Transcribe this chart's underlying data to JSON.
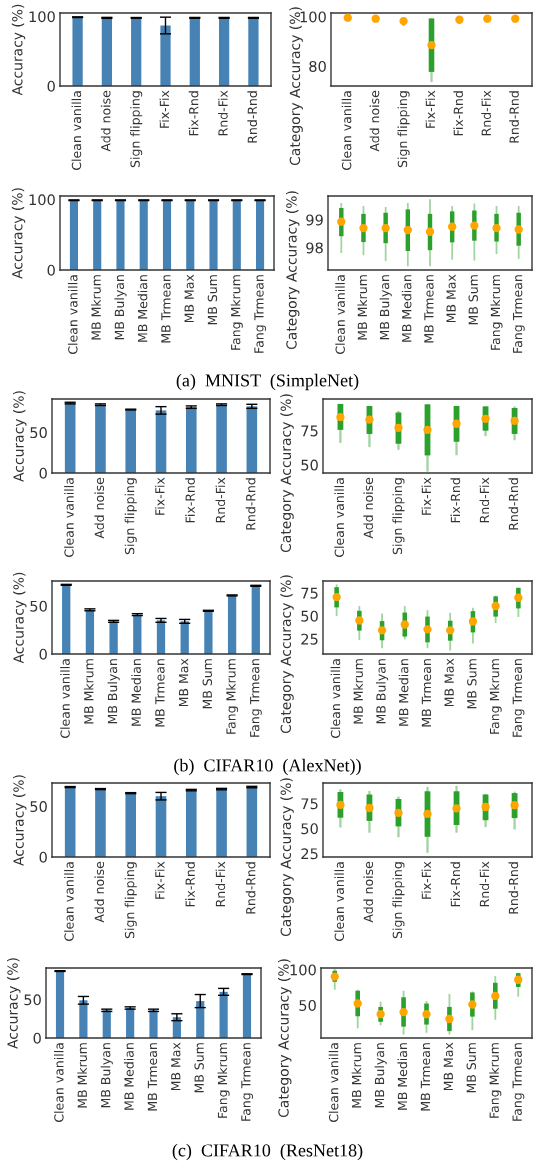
{
  "chart_data": [
    {
      "type": "bar",
      "ylabel": "Accuracy (%)",
      "categories": [
        "Clean vanilla",
        "Add noise",
        "Sign flipping",
        "Fix-Fix",
        "Fix-Rnd",
        "Rnd-Fix",
        "Rnd-Rnd"
      ],
      "values": [
        99,
        98,
        98,
        87,
        98,
        98,
        98
      ],
      "errors": [
        0.5,
        0.7,
        0.5,
        12,
        0.6,
        0.6,
        0.6
      ],
      "color": "#4682b4",
      "ylim": [
        0,
        105
      ],
      "yticks": [
        0,
        100
      ]
    },
    {
      "type": "box",
      "ylabel": "Category Accuracy (%)",
      "categories": [
        "Clean vanilla",
        "Add noise",
        "Sign flipping",
        "Fix-Fix",
        "Fix-Rnd",
        "Rnd-Fix",
        "Rnd-Rnd"
      ],
      "color": "#2ca02c",
      "ylim": [
        72,
        101.5
      ],
      "yticks": [
        80,
        100
      ],
      "boxes": [
        {
          "low": 99.2,
          "q1": 99.4,
          "q3": 99.8,
          "high": 100,
          "mean": 99.6
        },
        {
          "low": 98.9,
          "q1": 99.0,
          "q3": 99.4,
          "high": 99.6,
          "mean": 99.2
        },
        {
          "low": 96.2,
          "q1": 97.5,
          "q3": 98.9,
          "high": 99.6,
          "mean": 98.2
        },
        {
          "low": 73.6,
          "q1": 77.7,
          "q3": 99.3,
          "high": 99.3,
          "mean": 88.5
        },
        {
          "low": 97.1,
          "q1": 97.9,
          "q3": 99.6,
          "high": 99.6,
          "mean": 98.8
        },
        {
          "low": 98.9,
          "q1": 99.0,
          "q3": 99.4,
          "high": 99.6,
          "mean": 99.2
        },
        {
          "low": 98.9,
          "q1": 99.0,
          "q3": 99.4,
          "high": 99.6,
          "mean": 99.2
        }
      ]
    },
    {
      "type": "bar",
      "ylabel": "Accuracy (%)",
      "categories": [
        "Clean vanilla",
        "MB Mkrum",
        "MB Bulyan",
        "MB Median",
        "MB Trmean",
        "MB Max",
        "MB Sum",
        "Fang Mkrum",
        "Fang Trmean"
      ],
      "values": [
        99,
        99,
        99,
        99,
        99,
        99,
        99,
        99,
        99
      ],
      "errors": [
        0.5,
        0.5,
        0.5,
        0.5,
        0.5,
        0.5,
        0.5,
        0.5,
        0.5
      ],
      "color": "#4682b4",
      "ylim": [
        0,
        105
      ],
      "yticks": [
        0,
        100
      ]
    },
    {
      "type": "box",
      "ylabel": "Category Accuracy (%)",
      "categories": [
        "Clean vanilla",
        "MB Mkrum",
        "MB Bulyan",
        "MB Median",
        "MB Trmean",
        "MB Max",
        "MB Sum",
        "Fang Mkrum",
        "Fang Trmean"
      ],
      "color": "#2ca02c",
      "ylim": [
        97.2,
        99.85
      ],
      "yticks": [
        98,
        99
      ],
      "annotations": [
        "(a)  MNIST  (SimpleNet)"
      ],
      "boxes": [
        {
          "low": 97.81,
          "q1": 98.41,
          "q3": 99.42,
          "high": 99.6,
          "mean": 98.93
        },
        {
          "low": 97.73,
          "q1": 98.2,
          "q3": 99.21,
          "high": 99.49,
          "mean": 98.7
        },
        {
          "low": 97.52,
          "q1": 98.16,
          "q3": 99.25,
          "high": 99.46,
          "mean": 98.7
        },
        {
          "low": 97.33,
          "q1": 97.88,
          "q3": 99.37,
          "high": 99.6,
          "mean": 98.63
        },
        {
          "low": 97.33,
          "q1": 97.91,
          "q3": 99.21,
          "high": 99.73,
          "mean": 98.57
        },
        {
          "low": 97.57,
          "q1": 98.19,
          "q3": 99.3,
          "high": 99.49,
          "mean": 98.75
        },
        {
          "low": 97.54,
          "q1": 98.25,
          "q3": 99.33,
          "high": 99.58,
          "mean": 98.79
        },
        {
          "low": 97.77,
          "q1": 98.22,
          "q3": 99.21,
          "high": 99.49,
          "mean": 98.7
        },
        {
          "low": 97.6,
          "q1": 98.07,
          "q3": 99.25,
          "high": 99.49,
          "mean": 98.65
        }
      ]
    },
    {
      "type": "bar",
      "ylabel": "Accuracy (%)",
      "categories": [
        "Clean vanilla",
        "Add noise",
        "Sign flipping",
        "Fix-Fix",
        "Fix-Rnd",
        "Rnd-Fix",
        "Rnd-Rnd"
      ],
      "values": [
        86,
        84,
        78,
        77,
        81,
        84,
        82
      ],
      "errors": [
        1,
        1,
        0.5,
        4.6,
        1.5,
        1,
        2.5
      ],
      "color": "#4682b4",
      "ylim": [
        0,
        91
      ],
      "yticks": [
        0,
        50
      ]
    },
    {
      "type": "box",
      "ylabel": "Category Accuracy (%)",
      "categories": [
        "Clean vanilla",
        "Add noise",
        "Sign flipping",
        "Fix-Fix",
        "Fix-Rnd",
        "Rnd-Fix",
        "Rnd-Rnd"
      ],
      "color": "#2ca02c",
      "ylim": [
        44,
        98.2
      ],
      "yticks": [
        50,
        75
      ],
      "boxes": [
        {
          "low": 66,
          "q1": 75.6,
          "q3": 94.6,
          "high": 94.6,
          "mean": 84.9
        },
        {
          "low": 63,
          "q1": 72.6,
          "q3": 93.1,
          "high": 93.1,
          "mean": 83.1
        },
        {
          "low": 61,
          "q1": 65.4,
          "q3": 88.3,
          "high": 89.5,
          "mean": 77.1
        },
        {
          "low": 45,
          "q1": 56.9,
          "q3": 94.3,
          "high": 94.3,
          "mean": 75.6
        },
        {
          "low": 57,
          "q1": 66.9,
          "q3": 93.1,
          "high": 93.1,
          "mean": 80.1
        },
        {
          "low": 71,
          "q1": 75,
          "q3": 92.8,
          "high": 92.8,
          "mean": 83.7
        },
        {
          "low": 68,
          "q1": 72.6,
          "q3": 91.6,
          "high": 92.8,
          "mean": 82.2
        }
      ]
    },
    {
      "type": "bar",
      "ylabel": "Accuracy (%)",
      "categories": [
        "Clean vanilla",
        "MB Mkrum",
        "MB Bulyan",
        "MB Median",
        "MB Trmean",
        "MB Max",
        "MB Sum",
        "Fang Mkrum",
        "Fang Trmean"
      ],
      "values": [
        72,
        46,
        34,
        41,
        35,
        34,
        45,
        61,
        71
      ],
      "errors": [
        0.5,
        1,
        1,
        1,
        2,
        2,
        0.5,
        0.5,
        0.5
      ],
      "color": "#4682b4",
      "ylim": [
        0,
        76
      ],
      "yticks": [
        0,
        50
      ]
    },
    {
      "type": "box",
      "ylabel": "Category Accuracy (%)",
      "categories": [
        "Clean vanilla",
        "MB Mkrum",
        "MB Bulyan",
        "MB Median",
        "MB Trmean",
        "MB Max",
        "MB Sum",
        "Fang Mkrum",
        "Fang Trmean"
      ],
      "color": "#2ca02c",
      "ylim": [
        8.6,
        88
      ],
      "yticks": [
        25,
        50,
        75
      ],
      "annotations": [
        "(b)  CIFAR10  (AlexNet))"
      ],
      "boxes": [
        {
          "low": 50,
          "q1": 59.3,
          "q3": 81.3,
          "high": 84.3,
          "mean": 70.5
        },
        {
          "low": 23.9,
          "q1": 34,
          "q3": 55.6,
          "high": 60.8,
          "mean": 45.1
        },
        {
          "low": 14.9,
          "q1": 23.5,
          "q3": 44.4,
          "high": 52.6,
          "mean": 34.3
        },
        {
          "low": 24.6,
          "q1": 27.6,
          "q3": 53.7,
          "high": 60.8,
          "mean": 40.7
        },
        {
          "low": 14.9,
          "q1": 21.3,
          "q3": 49.3,
          "high": 56.3,
          "mean": 35.4
        },
        {
          "low": 12.3,
          "q1": 23.1,
          "q3": 44.8,
          "high": 53.4,
          "mean": 34.3
        },
        {
          "low": 20.1,
          "q1": 32.1,
          "q3": 55.2,
          "high": 59,
          "mean": 44
        },
        {
          "low": 42.2,
          "q1": 49.3,
          "q3": 71.3,
          "high": 72,
          "mean": 60.8
        },
        {
          "low": 48.9,
          "q1": 58.2,
          "q3": 80.6,
          "high": 80.6,
          "mean": 69.8
        }
      ]
    },
    {
      "type": "bar",
      "ylabel": "Accuracy (%)",
      "categories": [
        "Clean vanilla",
        "Add noise",
        "Sign flipping",
        "Fix-Fix",
        "Fix-Rnd",
        "Rnd-Fix",
        "Rnd-Rnd"
      ],
      "values": [
        69,
        67,
        63,
        60,
        66,
        67,
        69
      ],
      "errors": [
        0.5,
        0.5,
        0.5,
        3.7,
        0.7,
        0.7,
        0.7
      ],
      "color": "#4682b4",
      "ylim": [
        0,
        73
      ],
      "yticks": [
        0,
        50
      ]
    },
    {
      "type": "box",
      "ylabel": "Category Accuracy (%)",
      "categories": [
        "Clean vanilla",
        "Add noise",
        "Sign flipping",
        "Fix-Fix",
        "Fix-Rnd",
        "Rnd-Fix",
        "Rnd-Rnd"
      ],
      "color": "#2ca02c",
      "ylim": [
        21.5,
        95.5
      ],
      "yticks": [
        25,
        50,
        75
      ],
      "boxes": [
        {
          "low": 51,
          "q1": 60.8,
          "q3": 86.5,
          "high": 89.2,
          "mean": 73.6
        },
        {
          "low": 45.8,
          "q1": 57.6,
          "q3": 84,
          "high": 87.5,
          "mean": 70.5
        },
        {
          "low": 41.3,
          "q1": 52.1,
          "q3": 79.5,
          "high": 81.9,
          "mean": 65.6
        },
        {
          "low": 25.7,
          "q1": 41.7,
          "q3": 87.2,
          "high": 91.7,
          "mean": 64.6
        },
        {
          "low": 45.8,
          "q1": 53.5,
          "q3": 87.2,
          "high": 92.7,
          "mean": 70.1
        },
        {
          "low": 51.4,
          "q1": 58.3,
          "q3": 84,
          "high": 84.7,
          "mean": 71.5
        },
        {
          "low": 49,
          "q1": 60.4,
          "q3": 85.4,
          "high": 86.8,
          "mean": 73.3
        }
      ]
    },
    {
      "type": "bar",
      "ylabel": "Accuracy (%)",
      "categories": [
        "Clean vanilla",
        "MB Mkrum",
        "MB Bulyan",
        "MB Median",
        "MB Trmean",
        "MB Max",
        "MB Sum",
        "Fang Mkrum",
        "Fang Trmean"
      ],
      "values": [
        87,
        49,
        36,
        39,
        36,
        27,
        48,
        60,
        83
      ],
      "errors": [
        0.5,
        5,
        1.5,
        1.5,
        1.5,
        4.5,
        8.5,
        4.5,
        0.5
      ],
      "color": "#4682b4",
      "ylim": [
        0,
        91
      ],
      "yticks": [
        0,
        50
      ]
    },
    {
      "type": "box",
      "ylabel": "Category Accuracy (%)",
      "categories": [
        "Clean vanilla",
        "MB Mkrum",
        "MB Bulyan",
        "MB Median",
        "MB Trmean",
        "MB Max",
        "MB Sum",
        "Fang Mkrum",
        "Fang Trmean"
      ],
      "color": "#2ca02c",
      "ylim": [
        3.9,
        102.4
      ],
      "yticks": [
        50,
        100
      ],
      "annotations": [
        "(c)  CIFAR10  (ResNet18)"
      ],
      "boxes": [
        {
          "low": 71.8,
          "q1": 83,
          "q3": 98.5,
          "high": 101,
          "mean": 90.3
        },
        {
          "low": 17.5,
          "q1": 34.5,
          "q3": 70.4,
          "high": 71.8,
          "mean": 52.4
        },
        {
          "low": 21.8,
          "q1": 26.7,
          "q3": 47.6,
          "high": 54.9,
          "mean": 37.4
        },
        {
          "low": 8.7,
          "q1": 19.9,
          "q3": 61.2,
          "high": 70.4,
          "mean": 40.3
        },
        {
          "low": 11.2,
          "q1": 22.8,
          "q3": 52.4,
          "high": 55.8,
          "mean": 37.4
        },
        {
          "low": 8.7,
          "q1": 13.6,
          "q3": 47.6,
          "high": 66,
          "mean": 30.6
        },
        {
          "low": 15,
          "q1": 34,
          "q3": 68,
          "high": 69.4,
          "mean": 51
        },
        {
          "low": 29.6,
          "q1": 45.1,
          "q3": 81.6,
          "high": 91.3,
          "mean": 63.1
        },
        {
          "low": 62.1,
          "q1": 75.7,
          "q3": 95.1,
          "high": 95.6,
          "mean": 85.9
        }
      ]
    }
  ]
}
